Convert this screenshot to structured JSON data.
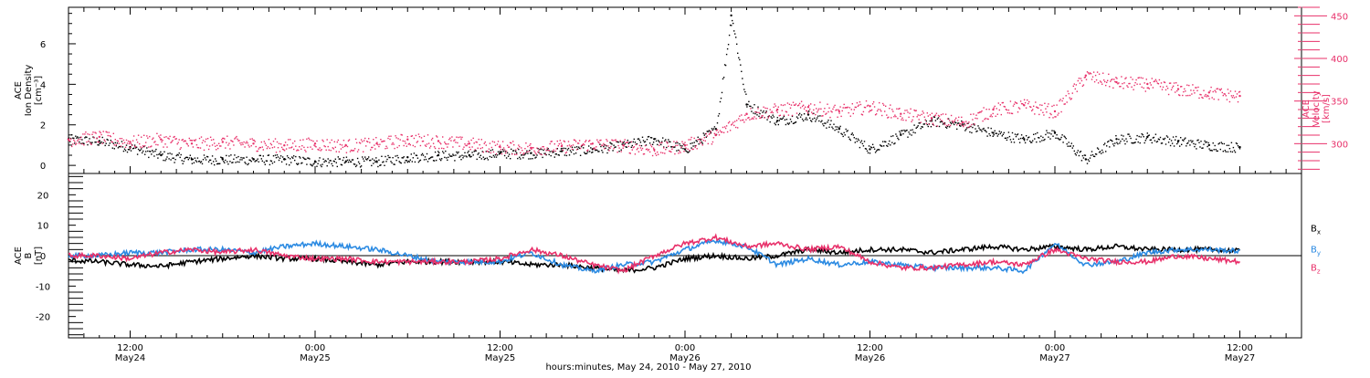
{
  "chart_data": [
    {
      "type": "scatter",
      "panel": "top",
      "x_unit": "hours since 2010-05-24 00:00 UTC",
      "xlim": [
        8.0,
        88.0
      ],
      "left_axis": {
        "label_line1": "ACE",
        "label_line2": "Ion Density",
        "unit": "[cm⁻³]",
        "ylim": [
          -0.4,
          7.8
        ],
        "ticks": [
          0,
          2,
          4,
          6
        ]
      },
      "right_axis": {
        "label_line1": "ACE",
        "label_line2": "Velocity",
        "unit": "[km/s]",
        "ylim": [
          265,
          460
        ],
        "ticks": [
          300,
          350,
          400,
          450
        ]
      },
      "series": [
        {
          "name": "Ion Density",
          "axis": "left",
          "color": "#000000",
          "points": [
            [
              8,
              1.3
            ],
            [
              10,
              1.2
            ],
            [
              12,
              0.9
            ],
            [
              14,
              0.5
            ],
            [
              16,
              0.3
            ],
            [
              18,
              0.3
            ],
            [
              20,
              0.3
            ],
            [
              22,
              0.3
            ],
            [
              24,
              0.2
            ],
            [
              26,
              0.2
            ],
            [
              28,
              0.2
            ],
            [
              30,
              0.4
            ],
            [
              32,
              0.5
            ],
            [
              34,
              0.5
            ],
            [
              36,
              0.6
            ],
            [
              38,
              0.6
            ],
            [
              40,
              0.7
            ],
            [
              42,
              0.8
            ],
            [
              44,
              1.0
            ],
            [
              46,
              1.3
            ],
            [
              48,
              0.8
            ],
            [
              50,
              1.8
            ],
            [
              51,
              7.4
            ],
            [
              52,
              3.0
            ],
            [
              54,
              2.2
            ],
            [
              56,
              2.5
            ],
            [
              58,
              1.8
            ],
            [
              60,
              0.8
            ],
            [
              62,
              1.5
            ],
            [
              64,
              2.2
            ],
            [
              66,
              2.0
            ],
            [
              68,
              1.6
            ],
            [
              70,
              1.3
            ],
            [
              72,
              1.6
            ],
            [
              74,
              0.3
            ],
            [
              76,
              1.3
            ],
            [
              78,
              1.4
            ],
            [
              80,
              1.2
            ],
            [
              82,
              1.0
            ],
            [
              84,
              0.9
            ]
          ]
        },
        {
          "name": "Velocity",
          "axis": "right",
          "color": "#e8306a",
          "points": [
            [
              8,
              305
            ],
            [
              10,
              308
            ],
            [
              12,
              302
            ],
            [
              14,
              305
            ],
            [
              16,
              300
            ],
            [
              18,
              302
            ],
            [
              20,
              300
            ],
            [
              22,
              298
            ],
            [
              24,
              300
            ],
            [
              26,
              298
            ],
            [
              28,
              300
            ],
            [
              30,
              305
            ],
            [
              32,
              303
            ],
            [
              34,
              300
            ],
            [
              36,
              296
            ],
            [
              38,
              295
            ],
            [
              40,
              297
            ],
            [
              42,
              300
            ],
            [
              44,
              298
            ],
            [
              46,
              293
            ],
            [
              48,
              298
            ],
            [
              50,
              310
            ],
            [
              52,
              335
            ],
            [
              54,
              340
            ],
            [
              56,
              343
            ],
            [
              58,
              338
            ],
            [
              60,
              344
            ],
            [
              62,
              335
            ],
            [
              64,
              330
            ],
            [
              66,
              325
            ],
            [
              68,
              340
            ],
            [
              70,
              345
            ],
            [
              72,
              338
            ],
            [
              74,
              380
            ],
            [
              76,
              372
            ],
            [
              78,
              370
            ],
            [
              80,
              364
            ],
            [
              82,
              360
            ],
            [
              84,
              356
            ]
          ]
        }
      ]
    },
    {
      "type": "line",
      "panel": "bottom",
      "x_unit": "hours since 2010-05-24 00:00 UTC",
      "xlim": [
        8.0,
        88.0
      ],
      "ylim": [
        -27,
        27
      ],
      "yticks": [
        -20,
        -10,
        0,
        10,
        20
      ],
      "ylabel_line1": "ACE",
      "ylabel_line2": "B",
      "ylabel_unit": "[nT]",
      "series": [
        {
          "name": "B",
          "sub": "x",
          "color": "#000000",
          "points": [
            [
              8,
              -1.5
            ],
            [
              10,
              -2
            ],
            [
              12,
              -3
            ],
            [
              14,
              -3.5
            ],
            [
              16,
              -2
            ],
            [
              18,
              -1
            ],
            [
              20,
              0
            ],
            [
              22,
              -1
            ],
            [
              24,
              -1
            ],
            [
              26,
              -2
            ],
            [
              28,
              -3
            ],
            [
              30,
              -2
            ],
            [
              32,
              -2
            ],
            [
              34,
              -2
            ],
            [
              36,
              -2
            ],
            [
              38,
              -3
            ],
            [
              40,
              -3
            ],
            [
              42,
              -4
            ],
            [
              44,
              -5
            ],
            [
              46,
              -4
            ],
            [
              48,
              -1
            ],
            [
              50,
              0
            ],
            [
              52,
              -1
            ],
            [
              54,
              0
            ],
            [
              56,
              2
            ],
            [
              58,
              1
            ],
            [
              60,
              2
            ],
            [
              62,
              2
            ],
            [
              64,
              1
            ],
            [
              66,
              2
            ],
            [
              68,
              3
            ],
            [
              70,
              2
            ],
            [
              72,
              3
            ],
            [
              74,
              2
            ],
            [
              76,
              3
            ],
            [
              78,
              2
            ],
            [
              80,
              2
            ],
            [
              82,
              2
            ],
            [
              84,
              1.5
            ]
          ]
        },
        {
          "name": "B",
          "sub": "y",
          "color": "#2b8ae2",
          "points": [
            [
              8,
              0
            ],
            [
              10,
              0
            ],
            [
              12,
              1
            ],
            [
              14,
              1
            ],
            [
              16,
              2
            ],
            [
              18,
              2
            ],
            [
              20,
              1
            ],
            [
              22,
              3
            ],
            [
              24,
              4
            ],
            [
              26,
              3
            ],
            [
              28,
              2
            ],
            [
              30,
              0
            ],
            [
              32,
              -2
            ],
            [
              34,
              -2
            ],
            [
              36,
              -2
            ],
            [
              38,
              1
            ],
            [
              40,
              -3
            ],
            [
              42,
              -5
            ],
            [
              44,
              -3
            ],
            [
              46,
              -2
            ],
            [
              48,
              2
            ],
            [
              50,
              5
            ],
            [
              52,
              3
            ],
            [
              54,
              -3
            ],
            [
              56,
              -1
            ],
            [
              58,
              -3
            ],
            [
              60,
              -2
            ],
            [
              62,
              -3
            ],
            [
              64,
              -4
            ],
            [
              66,
              -4
            ],
            [
              68,
              -4
            ],
            [
              70,
              -5
            ],
            [
              72,
              4
            ],
            [
              74,
              -3
            ],
            [
              76,
              -2
            ],
            [
              78,
              1
            ],
            [
              80,
              2
            ],
            [
              82,
              2
            ],
            [
              84,
              1.5
            ]
          ]
        },
        {
          "name": "B",
          "sub": "z",
          "color": "#e8306a",
          "points": [
            [
              8,
              0
            ],
            [
              10,
              0
            ],
            [
              12,
              -1
            ],
            [
              14,
              1
            ],
            [
              16,
              2
            ],
            [
              18,
              1
            ],
            [
              20,
              2
            ],
            [
              22,
              0
            ],
            [
              24,
              -1
            ],
            [
              26,
              -1
            ],
            [
              28,
              -2
            ],
            [
              30,
              -2
            ],
            [
              32,
              -2
            ],
            [
              34,
              -2
            ],
            [
              36,
              -1
            ],
            [
              38,
              2
            ],
            [
              40,
              0
            ],
            [
              42,
              -3
            ],
            [
              44,
              -5
            ],
            [
              46,
              0
            ],
            [
              48,
              4
            ],
            [
              50,
              6
            ],
            [
              52,
              3
            ],
            [
              54,
              4
            ],
            [
              56,
              2
            ],
            [
              58,
              3
            ],
            [
              60,
              -2
            ],
            [
              62,
              -4
            ],
            [
              64,
              -4
            ],
            [
              66,
              -3
            ],
            [
              68,
              -2
            ],
            [
              70,
              -3
            ],
            [
              72,
              2
            ],
            [
              74,
              -1
            ],
            [
              76,
              -2
            ],
            [
              78,
              -2
            ],
            [
              80,
              0
            ],
            [
              82,
              -1
            ],
            [
              84,
              -2
            ]
          ]
        }
      ]
    }
  ],
  "x_axis": {
    "title": "hours:minutes, May 24, 2010 - May 27, 2010",
    "major_ticks": [
      {
        "hour": 12,
        "time": "12:00",
        "date": "May24"
      },
      {
        "hour": 24,
        "time": "0:00",
        "date": "May25"
      },
      {
        "hour": 36,
        "time": "12:00",
        "date": "May25"
      },
      {
        "hour": 48,
        "time": "0:00",
        "date": "May26"
      },
      {
        "hour": 60,
        "time": "12:00",
        "date": "May26"
      },
      {
        "hour": 72,
        "time": "0:00",
        "date": "May27"
      },
      {
        "hour": 84,
        "time": "12:00",
        "date": "May27"
      }
    ]
  },
  "colors": {
    "axes": "#000000",
    "density": "#000000",
    "velocity": "#e8306a",
    "bx": "#000000",
    "by": "#2b8ae2",
    "bz": "#e8306a"
  }
}
